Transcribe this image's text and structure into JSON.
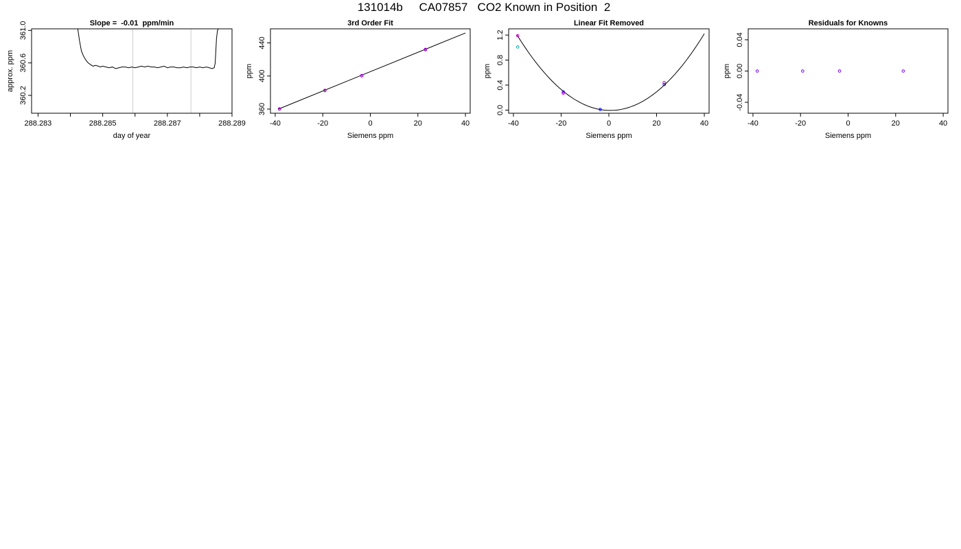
{
  "page": {
    "title": "131014b     CA07857   CO2 Known in Position  2"
  },
  "chart_data": [
    {
      "type": "line",
      "title": "Slope =  -0.01  ppm/min",
      "xlabel": "day of year",
      "ylabel": "approx. ppm",
      "xlim": [
        288.2828,
        288.289
      ],
      "ylim": [
        359.98,
        361.02
      ],
      "x_ticks": [
        288.283,
        288.285,
        288.287,
        288.289
      ],
      "x_minor_ticks": [
        288.284,
        288.286,
        288.288
      ],
      "y_ticks": [
        360.2,
        360.6,
        361.0
      ],
      "vlines": [
        288.28593,
        288.28773
      ],
      "vline_color": "#cccccc",
      "series": [
        {
          "color": "#000000",
          "x": [
            288.28423,
            288.28428,
            288.28434,
            288.2844,
            288.28447,
            288.28455,
            288.28462,
            288.2847,
            288.28478,
            288.28486,
            288.28493,
            288.285,
            288.2851,
            288.2852,
            288.2853,
            288.2854,
            288.2855,
            288.2856,
            288.2857,
            288.2858,
            288.2859,
            288.286,
            288.2861,
            288.2862,
            288.2863,
            288.2864,
            288.2865,
            288.2866,
            288.2867,
            288.2868,
            288.2869,
            288.287,
            288.2871,
            288.2872,
            288.2873,
            288.2874,
            288.2875,
            288.2876,
            288.2877,
            288.2878,
            288.2879,
            288.288,
            288.2881,
            288.2882,
            288.2883,
            288.28838,
            288.28845,
            288.28848,
            288.2885,
            288.28852,
            288.28855,
            288.28858
          ],
          "y": [
            361.02,
            360.88,
            360.75,
            360.69,
            360.64,
            360.6,
            360.58,
            360.56,
            360.57,
            360.56,
            360.55,
            360.56,
            360.55,
            360.54,
            360.55,
            360.53,
            360.54,
            360.55,
            360.55,
            360.54,
            360.55,
            360.54,
            360.55,
            360.56,
            360.55,
            360.56,
            360.55,
            360.55,
            360.54,
            360.55,
            360.56,
            360.54,
            360.55,
            360.55,
            360.54,
            360.54,
            360.55,
            360.54,
            360.55,
            360.55,
            360.54,
            360.55,
            360.54,
            360.55,
            360.54,
            360.53,
            360.54,
            360.6,
            360.75,
            360.9,
            361.0,
            361.02
          ]
        }
      ]
    },
    {
      "type": "scatter",
      "title": "3rd Order Fit",
      "xlabel": "Siemens ppm",
      "ylabel": "ppm",
      "xlim": [
        -42,
        42
      ],
      "ylim": [
        355,
        457
      ],
      "x_ticks": [
        -40,
        -20,
        0,
        20,
        40
      ],
      "y_ticks": [
        360,
        400,
        440
      ],
      "fit_line": {
        "x": [
          -38.5,
          40
        ],
        "y": [
          360.2,
          452
        ]
      },
      "series": [
        {
          "color": "#0000ff",
          "x": [
            -38.2,
            -19.1,
            -3.6,
            23.2
          ],
          "y": [
            360.1,
            382.4,
            400.5,
            431.8
          ]
        },
        {
          "color": "#cc00cc",
          "x": [
            -38.2,
            -19.1,
            -3.6,
            23.2
          ],
          "y": [
            360.3,
            382.7,
            400.2,
            432.2
          ]
        }
      ]
    },
    {
      "type": "scatter",
      "title": "Linear Fit Removed",
      "xlabel": "Siemens ppm",
      "ylabel": "ppm",
      "xlim": [
        -42,
        42
      ],
      "ylim": [
        -0.05,
        1.3
      ],
      "x_ticks": [
        -40,
        -20,
        0,
        20,
        40
      ],
      "y_ticks": [
        0.0,
        0.4,
        0.8,
        1.2
      ],
      "fit_curve": {
        "type": "parabola",
        "a": 0.00079,
        "h": 0.6,
        "k": -0.005,
        "x_from": -38.5,
        "x_to": 40
      },
      "series": [
        {
          "color": "#0000ff",
          "x": [
            -19.1,
            -3.6,
            23.2
          ],
          "y": [
            0.29,
            0.01,
            0.41
          ]
        },
        {
          "color": "#cc00cc",
          "x": [
            -38.2,
            -19.1,
            23.2
          ],
          "y": [
            1.19,
            0.27,
            0.44
          ]
        },
        {
          "color": "#00aaaa",
          "x": [
            -38.2
          ],
          "y": [
            1.01
          ]
        }
      ]
    },
    {
      "type": "scatter",
      "title": "Residuals for Knowns",
      "xlabel": "Siemens ppm",
      "ylabel": "ppm",
      "xlim": [
        -42,
        42
      ],
      "ylim": [
        -0.054,
        0.054
      ],
      "x_ticks": [
        -40,
        -20,
        0,
        20,
        40
      ],
      "y_ticks": [
        -0.04,
        0.0,
        0.04
      ],
      "series": [
        {
          "color": "#7700ff",
          "x": [
            -38.2,
            -19.1,
            -3.6,
            23.2
          ],
          "y": [
            0.0,
            0.0,
            0.0,
            0.0
          ]
        }
      ]
    }
  ]
}
